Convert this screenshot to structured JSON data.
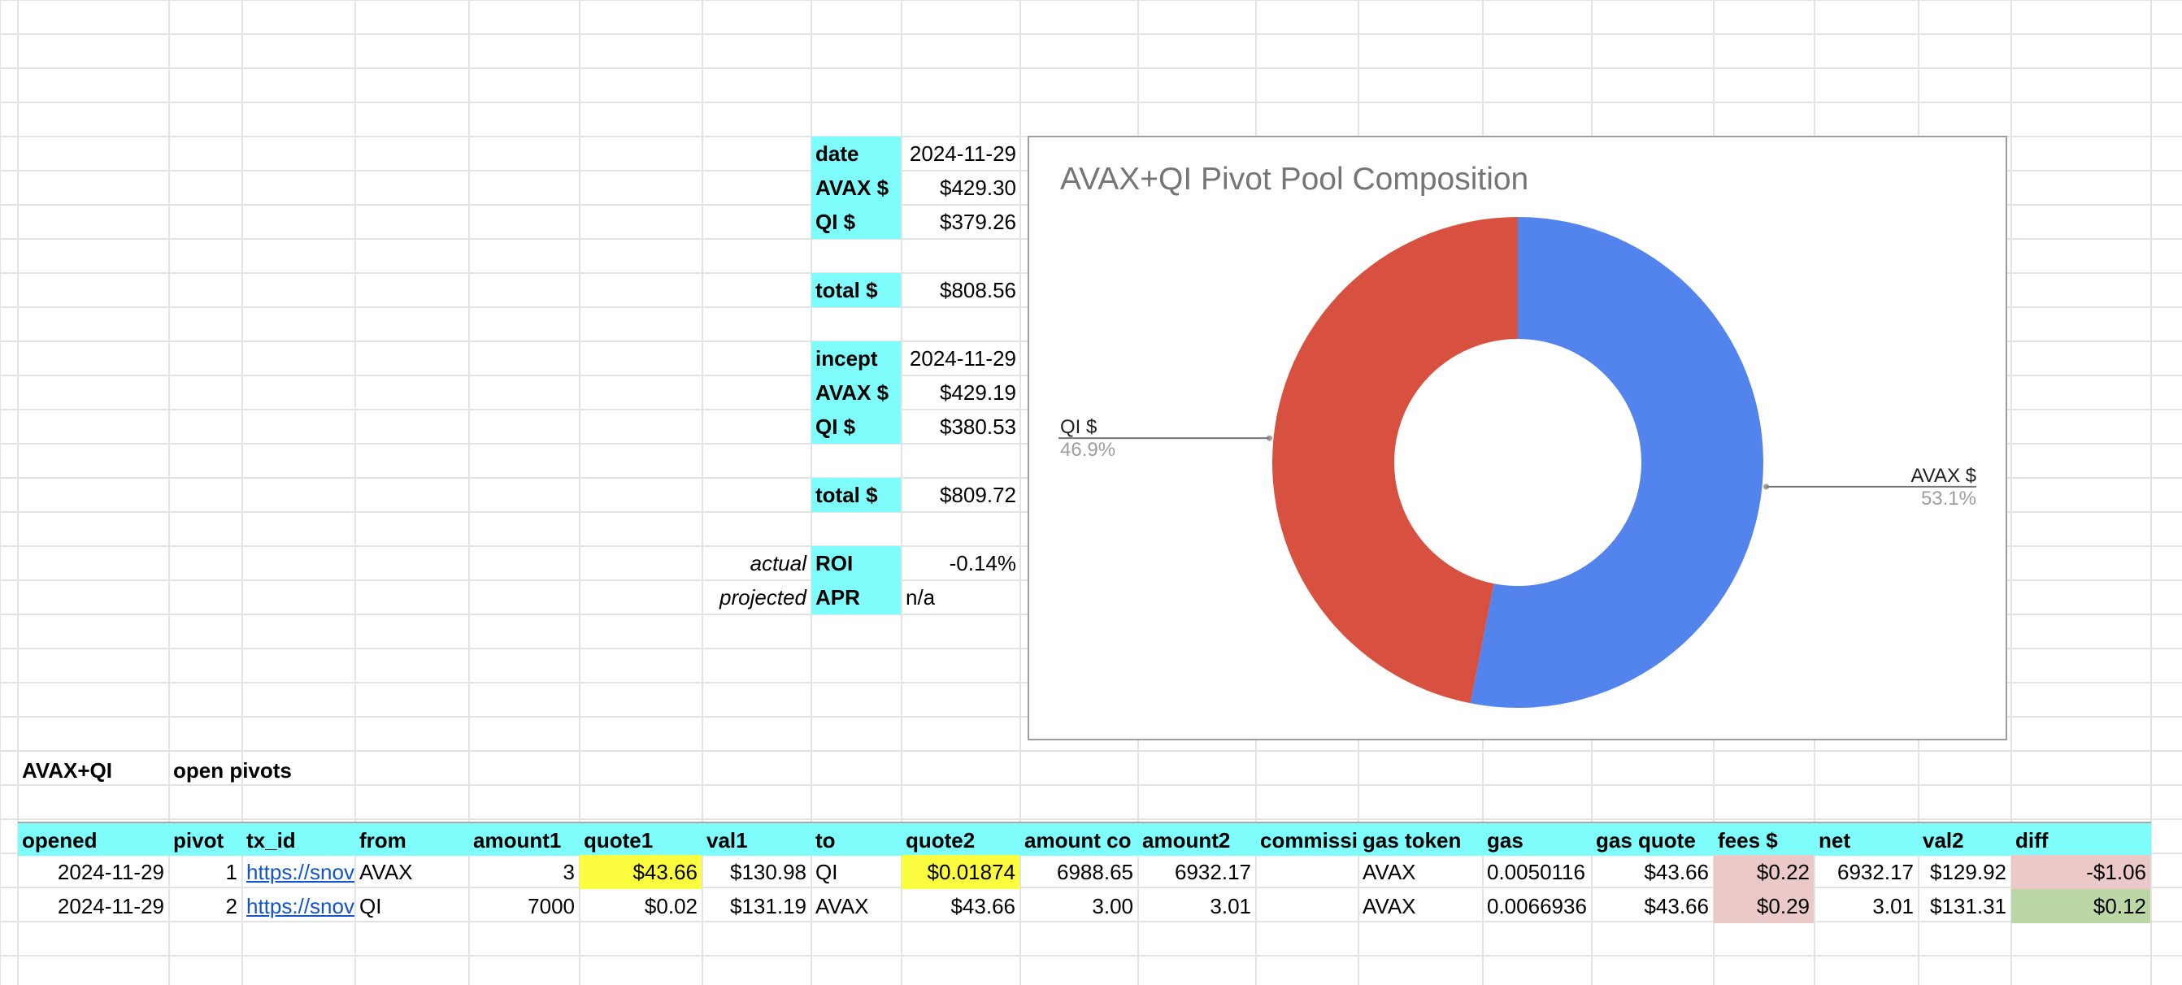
{
  "summary": {
    "rows": [
      {
        "pre": "",
        "label": "date",
        "value": "2024-11-29"
      },
      {
        "pre": "",
        "label": "AVAX $",
        "value": "$429.30"
      },
      {
        "pre": "",
        "label": "QI $",
        "value": "$379.26"
      },
      {
        "pre": "",
        "label": "total $",
        "value": "$808.56"
      },
      {
        "pre": "",
        "label": "incept",
        "value": "2024-11-29"
      },
      {
        "pre": "",
        "label": "AVAX $",
        "value": "$429.19"
      },
      {
        "pre": "",
        "label": "QI $",
        "value": "$380.53"
      },
      {
        "pre": "",
        "label": "total $",
        "value": "$809.72"
      },
      {
        "pre": "actual",
        "label": "ROI",
        "value": "-0.14%"
      },
      {
        "pre": "projected",
        "label": "APR",
        "value": "n/a"
      }
    ]
  },
  "section": {
    "pair": "AVAX+QI",
    "title": "open pivots"
  },
  "table": {
    "headers": [
      "opened",
      "pivot",
      "tx_id",
      "from",
      "amount1",
      "quote1",
      "val1",
      "to",
      "quote2",
      "amount co",
      "amount2",
      "commissi",
      "gas token",
      "gas",
      "gas quote",
      "fees $",
      "net",
      "val2",
      "diff"
    ],
    "rows": [
      [
        "2024-11-29",
        "1",
        "https://snov",
        "AVAX",
        "3",
        "$43.66",
        "$130.98",
        "QI",
        "$0.01874",
        "6988.65",
        "6932.17",
        "",
        "AVAX",
        "0.0050116",
        "$43.66",
        "$0.22",
        "6932.17",
        "$129.92",
        "-$1.06"
      ],
      [
        "2024-11-29",
        "2",
        "https://snov",
        "QI",
        "7000",
        "$0.02",
        "$131.19",
        "AVAX",
        "$43.66",
        "3.00",
        "3.01",
        "",
        "AVAX",
        "0.0066936",
        "$43.66",
        "$0.29",
        "3.01",
        "$131.31",
        "$0.12"
      ]
    ]
  },
  "chart_data": {
    "type": "pie",
    "title": "AVAX+QI Pivot Pool Composition",
    "donut": true,
    "slices": [
      {
        "label": "AVAX $",
        "value": 53.1,
        "percent_label": "53.1%",
        "color": "#5383ec"
      },
      {
        "label": "QI $",
        "value": 46.9,
        "percent_label": "46.9%",
        "color": "#d85140"
      }
    ]
  }
}
